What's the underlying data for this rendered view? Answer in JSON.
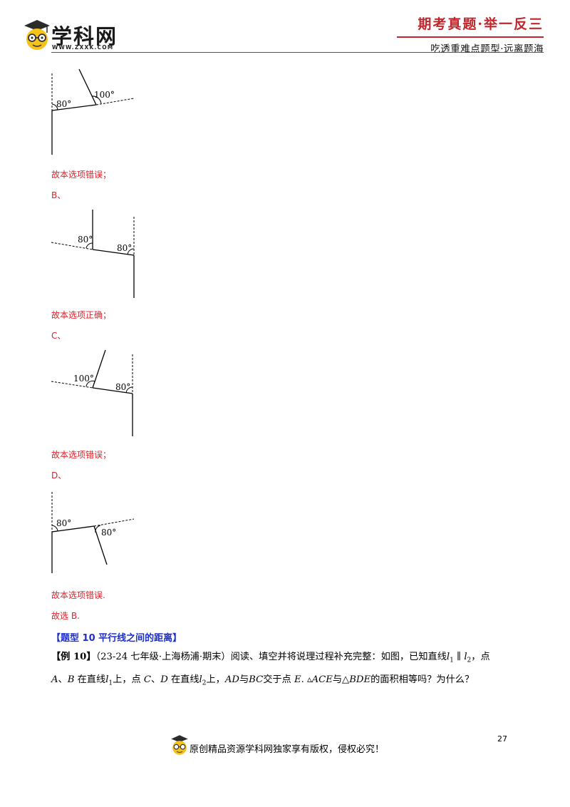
{
  "header": {
    "logo_name": "学科网",
    "logo_url": "WWW.ZXXK.COM",
    "slogan_top": "期考真题·举一反三",
    "slogan_bottom": "吃透重难点题型·远离题海"
  },
  "figures": {
    "fig_a": {
      "angle_left": "80°",
      "angle_right": "100°"
    },
    "fig_b": {
      "angle_left": "80°",
      "angle_right": "80°"
    },
    "fig_c": {
      "angle_left": "100°",
      "angle_right": "80°"
    },
    "fig_d": {
      "angle_left": "80°",
      "angle_right": "80°"
    }
  },
  "content": {
    "a_verdict": "故本选项错误；",
    "b_label": "B、",
    "b_verdict": "故本选项正确；",
    "c_label": "C、",
    "c_verdict": "故本选项错误；",
    "d_label": "D、",
    "d_verdict": "故本选项错误.",
    "answer": "故选 B.",
    "section_title": "【题型 10  平行线之间的距离】",
    "example_tag": "【例 10】",
    "example_source": "（23-24 七年级·上海杨浦·期末）",
    "example_line1_text": "阅读、填空并将说理过程补充完整：如图，已知直线",
    "l1": "l",
    "l1_sub": "1",
    "parallel": " ∥ ",
    "l2": "l",
    "l2_sub": "2",
    "line1_end": "，点",
    "line2_a": "A",
    "line2_sep1": "、",
    "line2_b": "B",
    "line2_t1": " 在直线",
    "line2_t2": "上，点 ",
    "line2_c": "C",
    "line2_sep2": "、",
    "line2_d": "D",
    "line2_t3": " 在直线",
    "line2_t4": "上，",
    "line2_ad": "AD",
    "line2_t5": "与",
    "line2_bc": "BC",
    "line2_t6": "交于点 ",
    "line2_e": "E",
    "line2_t7": ". ▵",
    "line2_ace": "ACE",
    "line2_t8": "与△",
    "line2_bde": "BDE",
    "line2_t9": "的面积相等吗？为什么？"
  },
  "footer": {
    "copyright": "原创精品资源学科网独家享有版权，侵权必究！",
    "page_number": "27"
  }
}
